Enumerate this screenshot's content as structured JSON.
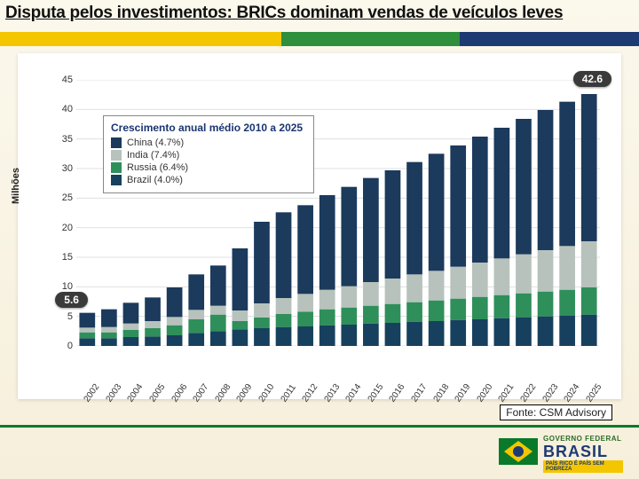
{
  "title": "Disputa pelos investimentos: BRICs dominam vendas de veículos leves",
  "source": "Fonte: CSM Advisory",
  "logo": {
    "line1": "GOVERNO FEDERAL",
    "line2": "BRASIL",
    "line3": "PAÍS RICO É PAÍS SEM POBREZA"
  },
  "chart": {
    "type": "stacked-bar",
    "yaxis_title": "Milhões",
    "legend_title": "Crescimento anual médio 2010 a 2025",
    "legend": [
      {
        "label": "China (4.7%)",
        "color": "#1b3a5c"
      },
      {
        "label": "India (7.4%)",
        "color": "#b7c2bc"
      },
      {
        "label": "Russia (6.4%)",
        "color": "#2e8f5a"
      },
      {
        "label": "Brazil (4.0%)",
        "color": "#17405e"
      }
    ],
    "ylim": [
      0,
      45
    ],
    "ytick_step": 5,
    "categories": [
      "2002",
      "2003",
      "2004",
      "2005",
      "2006",
      "2007",
      "2008",
      "2009",
      "2010",
      "2011",
      "2012",
      "2013",
      "2014",
      "2015",
      "2016",
      "2017",
      "2018",
      "2019",
      "2020",
      "2021",
      "2022",
      "2023",
      "2024",
      "2025"
    ],
    "series": {
      "Brazil": [
        1.3,
        1.3,
        1.5,
        1.6,
        1.8,
        2.2,
        2.5,
        2.8,
        3.0,
        3.2,
        3.3,
        3.5,
        3.6,
        3.8,
        3.9,
        4.1,
        4.2,
        4.4,
        4.5,
        4.7,
        4.8,
        5.0,
        5.1,
        5.3
      ],
      "Russia": [
        1.0,
        1.0,
        1.2,
        1.4,
        1.7,
        2.3,
        2.8,
        1.4,
        1.8,
        2.2,
        2.5,
        2.7,
        2.9,
        3.0,
        3.2,
        3.3,
        3.5,
        3.6,
        3.8,
        3.9,
        4.1,
        4.2,
        4.4,
        4.6
      ],
      "India": [
        0.8,
        0.9,
        1.1,
        1.2,
        1.4,
        1.6,
        1.5,
        1.8,
        2.4,
        2.7,
        3.0,
        3.3,
        3.6,
        4.0,
        4.3,
        4.7,
        5.0,
        5.4,
        5.8,
        6.2,
        6.6,
        7.0,
        7.4,
        7.8
      ],
      "China": [
        2.5,
        3.0,
        3.5,
        4.0,
        5.0,
        6.0,
        6.8,
        10.5,
        13.8,
        14.5,
        15.0,
        16.0,
        16.8,
        17.6,
        18.3,
        19.0,
        19.8,
        20.5,
        21.3,
        22.1,
        22.9,
        23.7,
        24.4,
        24.9
      ]
    },
    "stack_order": [
      "Brazil",
      "Russia",
      "India",
      "China"
    ],
    "colors": {
      "Brazil": "#17405e",
      "Russia": "#2e8f5a",
      "India": "#b7c2bc",
      "China": "#1b3a5c"
    },
    "bar_width": 0.72,
    "callouts": [
      {
        "text": "5.6",
        "x_index": 0
      },
      {
        "text": "42.6",
        "x_index": 23
      }
    ],
    "background_color": "#ffffff",
    "grid_color": "#e0e0e0",
    "label_fontsize": 11
  }
}
